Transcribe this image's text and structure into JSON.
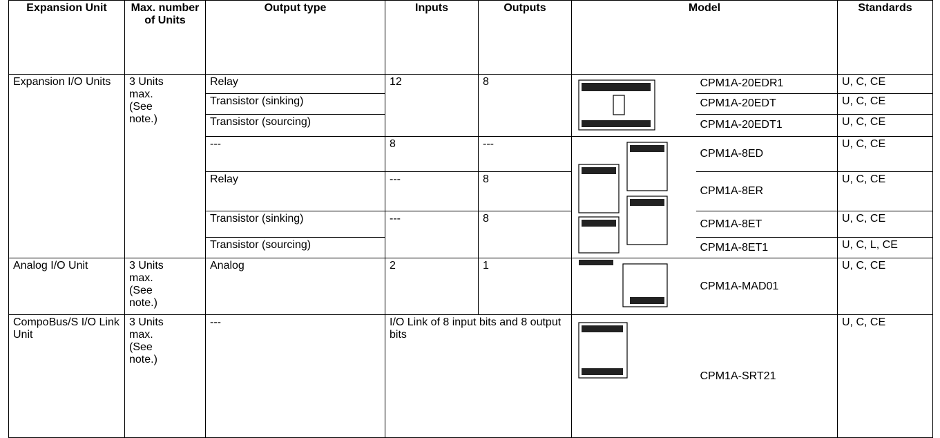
{
  "table": {
    "header": [
      "Expansion Unit",
      "Max. number of Units",
      "Output type",
      "Inputs",
      "Outputs",
      "Model",
      "Standards"
    ],
    "rows": [
      [
        "Expansion I/O Units",
        "3 Units max. (See note.)",
        "Relay",
        "12",
        "8",
        "CPM1A-20EDR1",
        "U, C, CE"
      ],
      [
        "Transistor (sinking)",
        "CPM1A-20EDT",
        "U, C, CE"
      ],
      [
        "Transistor (sourcing)",
        "CPM1A-20EDT1",
        "U, C, CE"
      ],
      [
        "---",
        "8",
        "---",
        "CPM1A-8ED",
        "U, C, CE"
      ],
      [
        "Relay",
        "---",
        "8",
        "CPM1A-8ER",
        "U, C, CE"
      ],
      [
        "Transistor (sinking)",
        "---",
        "8",
        "CPM1A-8ET",
        "U, C, CE"
      ],
      [
        "Transistor (sourcing)",
        "CPM1A-8ET1",
        "U, C, L, CE"
      ],
      [
        "Analog I/O Unit",
        "3 Units max. (See note.)",
        "Analog",
        "2",
        "1",
        "CPM1A-MAD01",
        "U, C, CE"
      ],
      [
        "CompoBus/S I/O Link Unit",
        "3 Units max. (See note.)",
        "---",
        "I/O Link of 8 input bits and 8 output bits",
        "CPM1A-SRT21",
        "U, C, CE"
      ]
    ]
  }
}
